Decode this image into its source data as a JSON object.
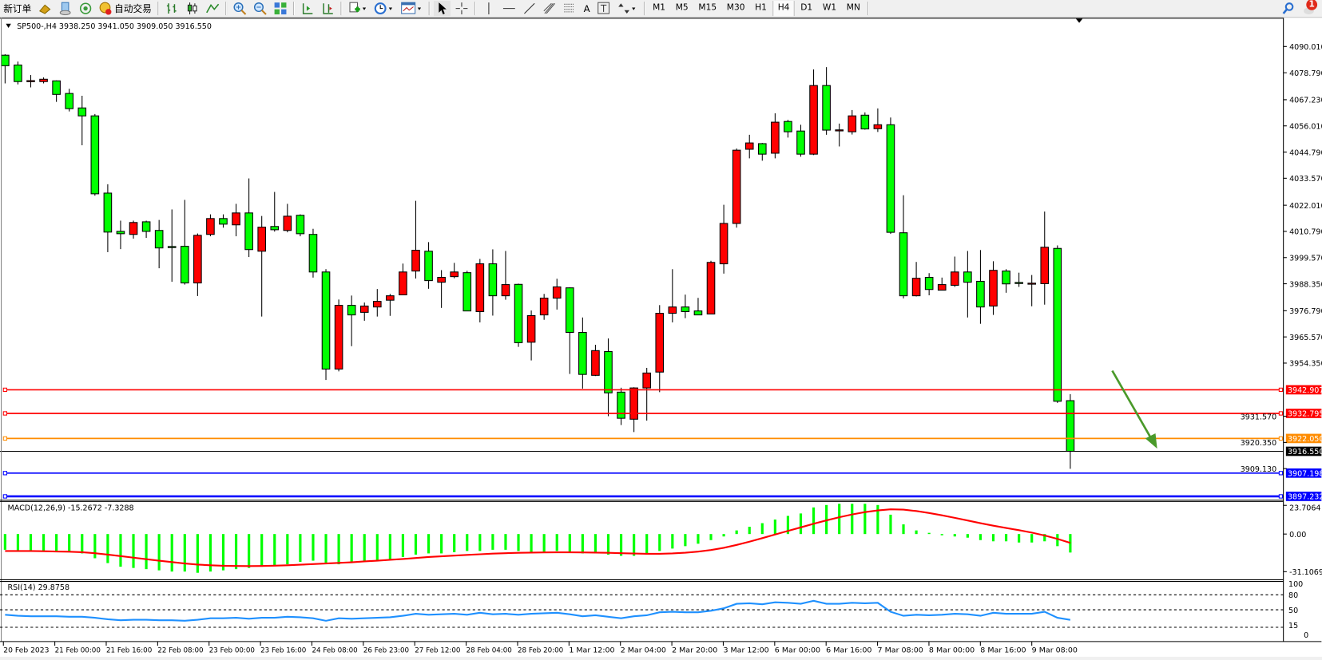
{
  "toolbar": {
    "new_order": "新订单",
    "auto_trading": "自动交易",
    "icons": [
      "gold-bars-icon",
      "market-watch-icon",
      "signal-icon",
      "bar-chart-icon",
      "candlestick-chart-icon",
      "line-chart-icon",
      "zoom-in-icon",
      "zoom-out-icon",
      "tile-windows-icon",
      "autoscroll-icon",
      "chart-shift-icon",
      "indicators-icon",
      "periods-clock-icon",
      "templates-icon",
      "cursor-icon",
      "crosshair-icon",
      "vertical-line-icon",
      "horizontal-line-icon",
      "trendline-icon",
      "fibonacci-icon",
      "fibonacci-fan-icon",
      "text-icon",
      "text-label-icon",
      "arrows-icon"
    ],
    "text_tool": "A",
    "timeframes": [
      "M1",
      "M5",
      "M15",
      "M30",
      "H1",
      "H4",
      "D1",
      "W1",
      "MN"
    ],
    "active_timeframe": "H4",
    "notification_count": "1"
  },
  "chart": {
    "header": "SP500-,H4  3938.250 3941.050 3909.050 3916.550",
    "symbol": "SP500-",
    "timeframe": "H4",
    "colors": {
      "bear_candle": "#00ff00",
      "bull_candle": "#ff0000",
      "macd_hist": "#00ff00",
      "macd_signal": "#ff0000",
      "rsi_line": "#1e90ff"
    },
    "price_axis_labels": [
      "4090.010",
      "4078.790",
      "4067.230",
      "4056.010",
      "4044.790",
      "4033.570",
      "4022.010",
      "4010.790",
      "3999.570",
      "3988.350",
      "3976.790",
      "3965.570",
      "3954.350",
      "3931.570",
      "3920.350",
      "3909.130"
    ],
    "hlines": [
      {
        "price": 3942.907,
        "label": "3942.907",
        "color": "#ff0000"
      },
      {
        "price": 3932.795,
        "label": "3932.795",
        "color": "#ff0000"
      },
      {
        "price": 3922.05,
        "label": "3922.050",
        "color": "#ff8c00"
      },
      {
        "price": 3907.198,
        "label": "3907.198",
        "color": "#0000ff"
      },
      {
        "price": 3897.232,
        "label": "3897.232",
        "color": "#0000ff"
      }
    ],
    "bid": {
      "price": 3916.55,
      "label": "3916.550"
    },
    "arrow_color": "#4a9a2a",
    "candles": [
      [
        4086.3,
        4086.7,
        4074.2,
        4081.8
      ],
      [
        4082.1,
        4083.6,
        4073.8,
        4075.0
      ],
      [
        4075.3,
        4077.8,
        4072.5,
        4075.4
      ],
      [
        4075.0,
        4076.8,
        4074.2,
        4076.0
      ],
      [
        4075.3,
        4075.5,
        4066.3,
        4069.5
      ],
      [
        4069.9,
        4071.9,
        4062.2,
        4063.4
      ],
      [
        4063.7,
        4068.9,
        4047.7,
        4060.3
      ],
      [
        4060.3,
        4061.1,
        4026.1,
        4026.9
      ],
      [
        4027.2,
        4031.0,
        4001.9,
        4010.5
      ],
      [
        4010.8,
        4015.4,
        4003.2,
        4009.8
      ],
      [
        4009.5,
        4015.4,
        4007.7,
        4014.6
      ],
      [
        4014.9,
        4015.4,
        4008.0,
        4010.8
      ],
      [
        4011.2,
        4015.7,
        3995.0,
        4003.7
      ],
      [
        4004.3,
        4020.2,
        3989.2,
        4004.0
      ],
      [
        4004.4,
        4024.3,
        3988.0,
        3988.7
      ],
      [
        3988.7,
        4009.9,
        3983.1,
        4009.1
      ],
      [
        4009.5,
        4018.1,
        4008.7,
        4016.3
      ],
      [
        4016.3,
        4018.1,
        4012.4,
        4013.9
      ],
      [
        4013.6,
        4022.6,
        4008.7,
        4018.7
      ],
      [
        4018.7,
        4033.5,
        3999.8,
        4003.0
      ],
      [
        4002.3,
        4017.4,
        3974.3,
        4012.6
      ],
      [
        4012.9,
        4027.7,
        4010.7,
        4011.5
      ],
      [
        4011.2,
        4022.6,
        4010.4,
        4017.3
      ],
      [
        4017.7,
        4018.1,
        4008.7,
        4009.8
      ],
      [
        4009.5,
        4011.9,
        3991.0,
        3993.4
      ],
      [
        3993.4,
        3994.6,
        3947.1,
        3951.8
      ],
      [
        3951.8,
        3981.6,
        3950.8,
        3979.1
      ],
      [
        3979.1,
        3983.3,
        3961.6,
        3975.0
      ],
      [
        3976.1,
        3980.3,
        3972.5,
        3978.8
      ],
      [
        3978.4,
        3986.1,
        3974.3,
        3980.8
      ],
      [
        3981.3,
        3984.0,
        3974.6,
        3983.2
      ],
      [
        3983.6,
        3997.0,
        3983.6,
        3993.4
      ],
      [
        3993.8,
        4023.9,
        3990.6,
        4002.7
      ],
      [
        4002.3,
        4006.2,
        3986.2,
        3989.7
      ],
      [
        3989.0,
        3994.2,
        3978.0,
        3991.1
      ],
      [
        3991.4,
        3997.3,
        3990.7,
        3993.4
      ],
      [
        3993.1,
        3993.9,
        3976.7,
        3976.7
      ],
      [
        3976.4,
        3999.0,
        3971.8,
        3996.9
      ],
      [
        3996.9,
        4003.1,
        3974.7,
        3983.2
      ],
      [
        3983.2,
        4002.4,
        3981.5,
        3988.0
      ],
      [
        3988.1,
        3988.4,
        3961.3,
        3963.1
      ],
      [
        3963.3,
        3976.9,
        3955.5,
        3974.7
      ],
      [
        3975.0,
        3984.0,
        3972.9,
        3982.2
      ],
      [
        3982.2,
        3990.5,
        3977.3,
        3987.0
      ],
      [
        3986.6,
        3986.8,
        3949.7,
        3967.5
      ],
      [
        3967.5,
        3973.9,
        3943.4,
        3949.5
      ],
      [
        3949.1,
        3962.2,
        3948.8,
        3959.7
      ],
      [
        3959.3,
        3964.9,
        3931.6,
        3941.6
      ],
      [
        3941.9,
        3943.8,
        3927.8,
        3930.7
      ],
      [
        3930.3,
        3944.0,
        3924.8,
        3943.7
      ],
      [
        3943.7,
        3952.3,
        3929.7,
        3950.1
      ],
      [
        3950.5,
        3979.2,
        3941.9,
        3975.7
      ],
      [
        3975.7,
        3994.6,
        3971.8,
        3978.4
      ],
      [
        3978.4,
        3983.7,
        3973.6,
        3976.4
      ],
      [
        3976.7,
        3982.3,
        3975.0,
        3975.0
      ],
      [
        3975.4,
        3998.2,
        3975.4,
        3997.5
      ],
      [
        3996.9,
        4022.2,
        3992.7,
        4014.2
      ],
      [
        4014.2,
        4046.3,
        4012.4,
        4045.6
      ],
      [
        4046.0,
        4052.2,
        4042.1,
        4048.7
      ],
      [
        4048.4,
        4048.7,
        4041.1,
        4043.9
      ],
      [
        4044.3,
        4061.4,
        4042.1,
        4057.6
      ],
      [
        4057.9,
        4058.6,
        4051.0,
        4053.5
      ],
      [
        4053.8,
        4056.5,
        4042.8,
        4043.9
      ],
      [
        4043.9,
        4080.2,
        4043.5,
        4073.3
      ],
      [
        4073.3,
        4081.2,
        4052.2,
        4054.2
      ],
      [
        4054.1,
        4057.0,
        4047.2,
        4054.3
      ],
      [
        4053.5,
        4062.8,
        4052.3,
        4060.3
      ],
      [
        4060.6,
        4061.8,
        4054.4,
        4054.7
      ],
      [
        4054.8,
        4063.5,
        4053.4,
        4056.5
      ],
      [
        4056.5,
        4059.6,
        4009.7,
        4010.4
      ],
      [
        4010.2,
        4026.3,
        3982.1,
        3983.2
      ],
      [
        3983.2,
        3997.7,
        3982.9,
        3990.7
      ],
      [
        3991.1,
        3992.9,
        3983.4,
        3985.9
      ],
      [
        3985.6,
        3991.0,
        3985.6,
        3988.0
      ],
      [
        3987.7,
        4000.0,
        3987.0,
        3993.4
      ],
      [
        3993.4,
        4002.4,
        3973.9,
        3989.0
      ],
      [
        3989.4,
        4002.8,
        3971.2,
        3978.4
      ],
      [
        3978.8,
        3998.0,
        3975.0,
        3994.1
      ],
      [
        3993.8,
        3994.6,
        3984.5,
        3988.3
      ],
      [
        3988.9,
        3993.1,
        3987.0,
        3988.6
      ],
      [
        3988.3,
        3992.1,
        3978.7,
        3988.6
      ],
      [
        3988.4,
        4019.3,
        3979.4,
        4004.0
      ],
      [
        4003.5,
        4004.8,
        3937.3,
        3938.0
      ],
      [
        3938.25,
        3941.05,
        3909.05,
        3916.55
      ]
    ],
    "time_labels": [
      "20 Feb 2023",
      "21 Feb 00:00",
      "21 Feb 16:00",
      "22 Feb 08:00",
      "23 Feb 00:00",
      "23 Feb 16:00",
      "24 Feb 08:00",
      "26 Feb 23:00",
      "27 Feb 12:00",
      "28 Feb 04:00",
      "28 Feb 20:00",
      "1 Mar 12:00",
      "2 Mar 04:00",
      "2 Mar 20:00",
      "3 Mar 12:00",
      "6 Mar 00:00",
      "6 Mar 16:00",
      "7 Mar 08:00",
      "8 Mar 00:00",
      "8 Mar 16:00",
      "9 Mar 08:00"
    ]
  },
  "macd": {
    "label": "MACD(12,26,9) -15.2672 -7.3288",
    "axis_labels": [
      "23.7064",
      "0.00",
      "-31.1069"
    ],
    "histogram": [
      -13,
      -14,
      -14,
      -14,
      -14,
      -15,
      -16,
      -20,
      -24,
      -27,
      -28,
      -29,
      -30,
      -31,
      -31,
      -32,
      -31,
      -30,
      -29,
      -28,
      -27,
      -26,
      -25,
      -23,
      -22,
      -24,
      -25,
      -24,
      -23,
      -22,
      -21,
      -19,
      -17,
      -16,
      -16,
      -15,
      -14,
      -14,
      -13,
      -13,
      -14,
      -15,
      -15,
      -14,
      -15,
      -16,
      -16,
      -17,
      -18,
      -18,
      -17,
      -14,
      -12,
      -10,
      -8,
      -5,
      -2,
      3,
      6,
      9,
      12,
      15,
      17,
      22,
      24,
      25,
      25,
      25,
      24,
      16,
      8,
      3,
      1,
      -1,
      -2,
      -3,
      -5,
      -6,
      -6,
      -7,
      -7,
      -6,
      -10,
      -15.2672
    ],
    "signal": [
      -14,
      -14,
      -14,
      -14.2,
      -14.4,
      -14.6,
      -15,
      -15.8,
      -17,
      -18.2,
      -19.5,
      -20.8,
      -22,
      -23.2,
      -24.3,
      -25.2,
      -25.8,
      -26.2,
      -26.4,
      -26.5,
      -26.4,
      -26.1,
      -25.8,
      -25.3,
      -24.8,
      -24.3,
      -23.8,
      -23.3,
      -22.6,
      -22,
      -21.3,
      -20.6,
      -19.8,
      -19,
      -18.4,
      -17.8,
      -17.2,
      -16.7,
      -16.2,
      -15.8,
      -15.5,
      -15.3,
      -15.2,
      -15.1,
      -15.1,
      -15.2,
      -15.3,
      -15.5,
      -15.8,
      -16.1,
      -16.3,
      -16.3,
      -16,
      -15.4,
      -14.5,
      -13.2,
      -11.4,
      -9,
      -6.3,
      -3.4,
      -0.4,
      2.6,
      5.5,
      8.5,
      11.3,
      13.9,
      16.2,
      18.1,
      19.5,
      20.4,
      20.2,
      19,
      17.4,
      15.5,
      13.4,
      11.2,
      9,
      6.9,
      5,
      3.2,
      1.2,
      -1.2,
      -4,
      -7.3288
    ]
  },
  "rsi": {
    "label": "RSI(14) 29.8758",
    "axis_labels": [
      "100",
      "80",
      "50",
      "15",
      "0"
    ],
    "levels": [
      80,
      50,
      15
    ],
    "values": [
      40,
      38,
      37,
      37,
      37,
      36,
      36,
      34,
      31,
      29,
      30,
      30,
      29,
      29,
      28,
      30,
      33,
      33,
      34,
      32,
      34,
      34,
      36,
      35,
      33,
      28,
      33,
      32,
      33,
      34,
      35,
      38,
      42,
      40,
      41,
      42,
      40,
      44,
      41,
      42,
      40,
      42,
      43,
      44,
      41,
      37,
      39,
      36,
      33,
      37,
      39,
      45,
      46,
      45,
      45,
      48,
      53,
      62,
      63,
      61,
      65,
      64,
      62,
      68,
      62,
      62,
      64,
      63,
      64,
      46,
      38,
      40,
      39,
      40,
      42,
      41,
      38,
      44,
      42,
      42,
      42,
      46,
      34,
      29.8758
    ]
  }
}
